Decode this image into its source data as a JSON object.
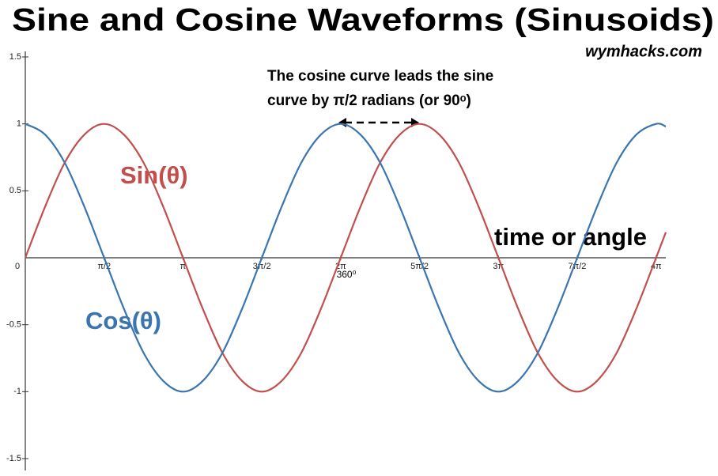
{
  "chart_data": {
    "type": "line",
    "title": "Sine and Cosine Waveforms (Sinusoids)",
    "subtitle": "wymhacks.com",
    "annotation": [
      "The cosine curve leads the sine",
      "curve by π/2 radians (or 90ᵒ)"
    ],
    "x_axis_label": "time or angle",
    "x_tick_note": "360⁰",
    "x": [
      0,
      0.3927,
      0.7854,
      1.1781,
      1.5708,
      1.9635,
      2.3562,
      2.7489,
      3.1416,
      3.5343,
      3.927,
      4.3197,
      4.7124,
      5.1051,
      5.4978,
      5.8905,
      6.2832,
      6.6759,
      7.0686,
      7.4613,
      7.854,
      8.2467,
      8.6394,
      9.0321,
      9.4248,
      9.8175,
      10.2102,
      10.6029,
      10.9956,
      11.3883,
      11.781,
      12.1737,
      12.5664,
      12.76
    ],
    "series": [
      {
        "name": "Sin(θ)",
        "color": "#c0504d",
        "values": [
          0,
          0.38,
          0.71,
          0.92,
          1,
          0.92,
          0.71,
          0.38,
          0,
          -0.38,
          -0.71,
          -0.92,
          -1,
          -0.92,
          -0.71,
          -0.38,
          0,
          0.38,
          0.71,
          0.92,
          1,
          0.92,
          0.71,
          0.38,
          0,
          -0.38,
          -0.71,
          -0.92,
          -1,
          -0.92,
          -0.71,
          -0.38,
          0,
          0.19
        ]
      },
      {
        "name": "Cos(θ)",
        "color": "#3a75b0",
        "values": [
          1,
          0.92,
          0.71,
          0.38,
          0,
          -0.38,
          -0.71,
          -0.92,
          -1,
          -0.92,
          -0.71,
          -0.38,
          0,
          0.38,
          0.71,
          0.92,
          1,
          0.92,
          0.71,
          0.38,
          0,
          -0.38,
          -0.71,
          -0.92,
          -1,
          -0.92,
          -0.71,
          -0.38,
          0,
          0.38,
          0.71,
          0.92,
          1,
          0.98
        ]
      }
    ],
    "xlim": [
      0,
      12.76
    ],
    "ylim": [
      -1.5,
      1.5
    ],
    "xticks": [
      0,
      {
        "value": 1.5708,
        "label": "π/2"
      },
      {
        "value": 3.1416,
        "label": "π"
      },
      {
        "value": 4.7124,
        "label": "3π/2"
      },
      {
        "value": 6.2832,
        "label": "2π"
      },
      {
        "value": 7.854,
        "label": "5π/2"
      },
      {
        "value": 9.4248,
        "label": "3π"
      },
      {
        "value": 10.9956,
        "label": "7π/2"
      },
      {
        "value": 12.5664,
        "label": "4π"
      }
    ],
    "yticks": [
      1.5,
      1,
      0.5,
      -0.5,
      -1,
      -1.5
    ]
  }
}
